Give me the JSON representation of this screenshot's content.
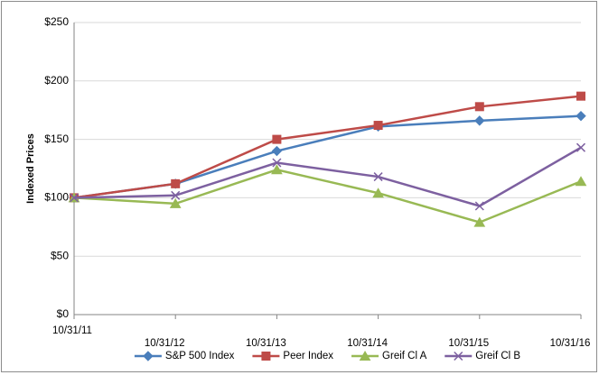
{
  "chart_data": {
    "type": "line",
    "y_label": "Indexed Prices",
    "categories": [
      "10/31/11",
      "10/31/12",
      "10/31/13",
      "10/31/14",
      "10/31/15",
      "10/31/16"
    ],
    "series": [
      {
        "name": "S&P 500 Index",
        "color": "#4a7ebb",
        "marker": "diamond",
        "values": [
          100,
          112,
          140,
          161,
          166,
          170
        ]
      },
      {
        "name": "Peer Index",
        "color": "#be4b48",
        "marker": "square",
        "values": [
          100,
          112,
          150,
          162,
          178,
          187
        ]
      },
      {
        "name": "Greif Cl A",
        "color": "#98b954",
        "marker": "triangle",
        "values": [
          100,
          95,
          124,
          104,
          79,
          114
        ]
      },
      {
        "name": "Greif Cl B",
        "color": "#7d60a0",
        "marker": "x",
        "values": [
          100,
          102,
          130,
          118,
          93,
          143
        ]
      }
    ],
    "ylim": [
      0,
      250
    ],
    "yticks": [
      {
        "value": 0,
        "label": "$0"
      },
      {
        "value": 50,
        "label": "$50"
      },
      {
        "value": 100,
        "label": "$100"
      },
      {
        "value": 150,
        "label": "$150"
      },
      {
        "value": 200,
        "label": "$200"
      },
      {
        "value": 250,
        "label": "$250"
      }
    ],
    "grid": true,
    "legend": "bottom"
  }
}
